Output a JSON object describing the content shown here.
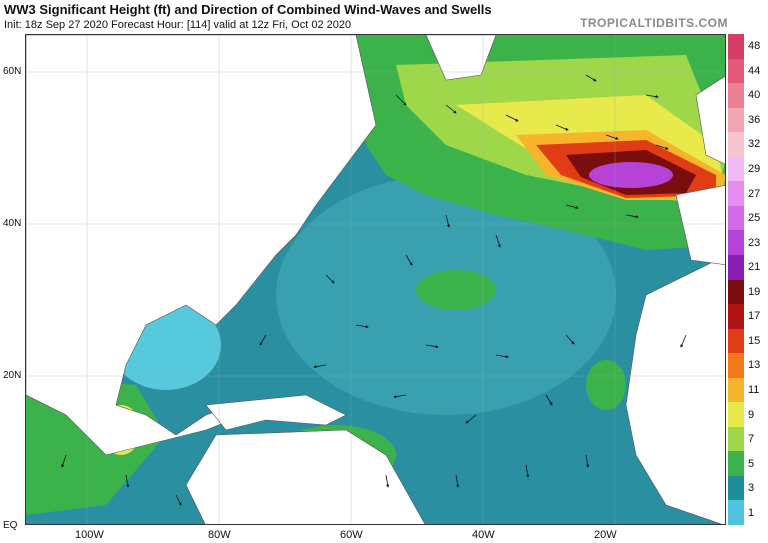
{
  "header": {
    "title": "WW3 Significant Height (ft) and Direction of Combined Wind-Waves and Swells",
    "subtitle": "Init: 18z Sep 27 2020   Forecast Hour: [114]   valid at 12z Fri, Oct 02 2020",
    "brand": "TROPICALTIDBITS.COM"
  },
  "colorbar": {
    "labels": [
      "48",
      "44",
      "40",
      "36",
      "32",
      "29",
      "27",
      "25",
      "23",
      "21",
      "19",
      "17",
      "15",
      "13",
      "11",
      "9",
      "7",
      "5",
      "3",
      "1"
    ],
    "colors": [
      "#d63d64",
      "#e25a78",
      "#ed7f93",
      "#f2a6b3",
      "#f5c6cd",
      "#f3b8f6",
      "#e48ff0",
      "#d46ae8",
      "#b544d6",
      "#8a1fb3",
      "#7a0d0d",
      "#b01414",
      "#e03c16",
      "#f27a1c",
      "#f7b52c",
      "#e8ea4b",
      "#9ed84a",
      "#3cb24a",
      "#1e8f9a",
      "#4fc3e0"
    ]
  },
  "axes": {
    "lat_labels": [
      "60N",
      "40N",
      "20N",
      "EQ"
    ],
    "lon_labels": [
      "100W",
      "80W",
      "60W",
      "40W",
      "20W"
    ]
  },
  "map": {
    "land_color": "#ffffff",
    "ocean_base_color": "#2a8fa0",
    "features": [
      "North America",
      "Greenland",
      "Caribbean",
      "South America",
      "Africa",
      "Western Europe"
    ],
    "max_wave_region": "North Atlantic west of Europe"
  }
}
